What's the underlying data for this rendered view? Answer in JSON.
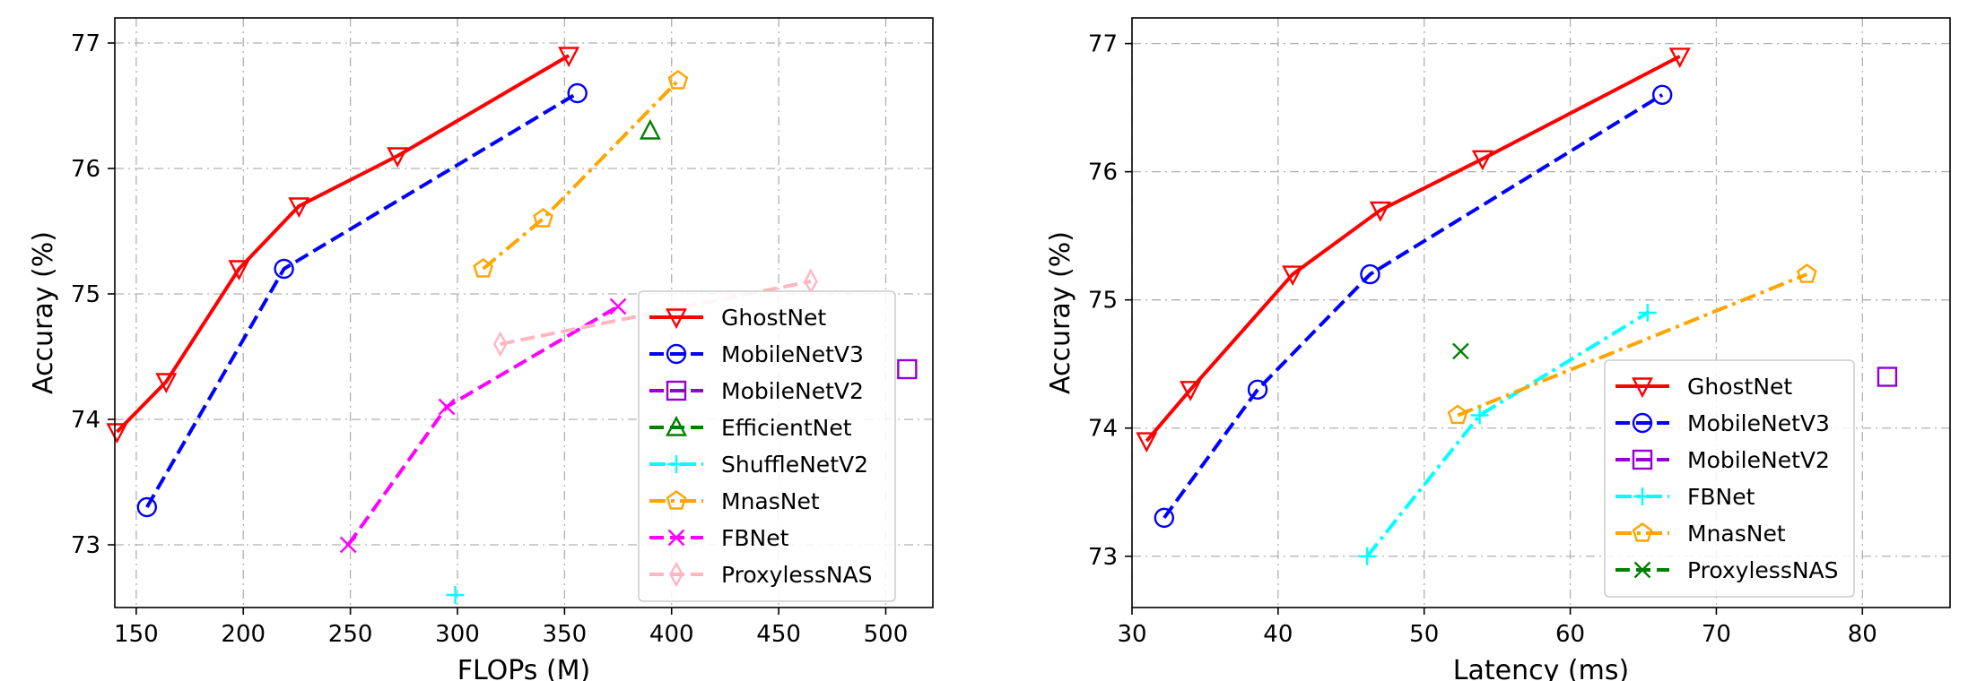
{
  "chart_data": [
    {
      "type": "line",
      "title": "",
      "xlabel": "FLOPs (M)",
      "ylabel": "Accuray (%)",
      "xlim": [
        140,
        522
      ],
      "ylim": [
        72.5,
        77.2
      ],
      "xticks": [
        150,
        200,
        250,
        300,
        350,
        400,
        450,
        500
      ],
      "yticks": [
        73,
        74,
        75,
        76,
        77
      ],
      "grid": true,
      "legend_position": "lower-right",
      "series": [
        {
          "name": "GhostNet",
          "color": "#ff0000",
          "marker": "triangle-down",
          "linestyle": "solid",
          "x": [
            141,
            164,
            198,
            226,
            272,
            352
          ],
          "y": [
            73.9,
            74.3,
            75.2,
            75.7,
            76.1,
            76.9
          ]
        },
        {
          "name": "MobileNetV3",
          "color": "#0000ff",
          "marker": "circle",
          "linestyle": "dashed",
          "x": [
            155,
            219,
            356
          ],
          "y": [
            73.3,
            75.2,
            76.6
          ]
        },
        {
          "name": "MobileNetV2",
          "color": "#9400d3",
          "marker": "square",
          "linestyle": "dashed",
          "x": [
            510
          ],
          "y": [
            74.4
          ]
        },
        {
          "name": "EfficientNet",
          "color": "#008000",
          "marker": "triangle-up",
          "linestyle": "dashed",
          "x": [
            390
          ],
          "y": [
            76.3
          ]
        },
        {
          "name": "ShuffleNetV2",
          "color": "#00ffff",
          "marker": "plus",
          "linestyle": "dashdot",
          "x": [
            299
          ],
          "y": [
            72.6
          ]
        },
        {
          "name": "MnasNet",
          "color": "#ffa500",
          "marker": "pentagon",
          "linestyle": "dashdot",
          "x": [
            312,
            340,
            403
          ],
          "y": [
            75.2,
            75.6,
            76.7
          ]
        },
        {
          "name": "FBNet",
          "color": "#ff00ff",
          "marker": "x",
          "linestyle": "dashed",
          "x": [
            249,
            295,
            375
          ],
          "y": [
            73.0,
            74.1,
            74.9
          ]
        },
        {
          "name": "ProxylessNAS",
          "color": "#ffb6c1",
          "marker": "thin-diamond",
          "linestyle": "dashed",
          "x": [
            320,
            465
          ],
          "y": [
            74.6,
            75.1
          ]
        }
      ]
    },
    {
      "type": "line",
      "title": "",
      "xlabel": "Latency (ms)",
      "ylabel": "Accuray (%)",
      "xlim": [
        30,
        86
      ],
      "ylim": [
        72.6,
        77.2
      ],
      "xticks": [
        30,
        40,
        50,
        60,
        70,
        80
      ],
      "yticks": [
        73,
        74,
        75,
        76,
        77
      ],
      "grid": true,
      "legend_position": "lower-right",
      "series": [
        {
          "name": "GhostNet",
          "color": "#ff0000",
          "marker": "triangle-down",
          "linestyle": "solid",
          "x": [
            31,
            34,
            41,
            47,
            54,
            67.5
          ],
          "y": [
            73.9,
            74.3,
            75.2,
            75.7,
            76.1,
            76.9
          ]
        },
        {
          "name": "MobileNetV3",
          "color": "#0000ff",
          "marker": "circle",
          "linestyle": "dashed",
          "x": [
            32.2,
            38.6,
            46.3,
            66.3
          ],
          "y": [
            73.3,
            74.3,
            75.2,
            76.6
          ]
        },
        {
          "name": "MobileNetV2",
          "color": "#9400d3",
          "marker": "square",
          "linestyle": "dashed",
          "x": [
            81.7
          ],
          "y": [
            74.4
          ]
        },
        {
          "name": "FBNet",
          "color": "#00ffff",
          "marker": "plus",
          "linestyle": "dashdot",
          "x": [
            46.1,
            53.8,
            65.3
          ],
          "y": [
            73.0,
            74.1,
            74.9
          ]
        },
        {
          "name": "MnasNet",
          "color": "#ffa500",
          "marker": "pentagon",
          "linestyle": "dashdot",
          "x": [
            52.3,
            76.2
          ],
          "y": [
            74.1,
            75.2
          ]
        },
        {
          "name": "ProxylessNAS",
          "color": "#008000",
          "marker": "x",
          "linestyle": "dashed",
          "x": [
            52.5
          ],
          "y": [
            74.6
          ]
        }
      ]
    }
  ]
}
